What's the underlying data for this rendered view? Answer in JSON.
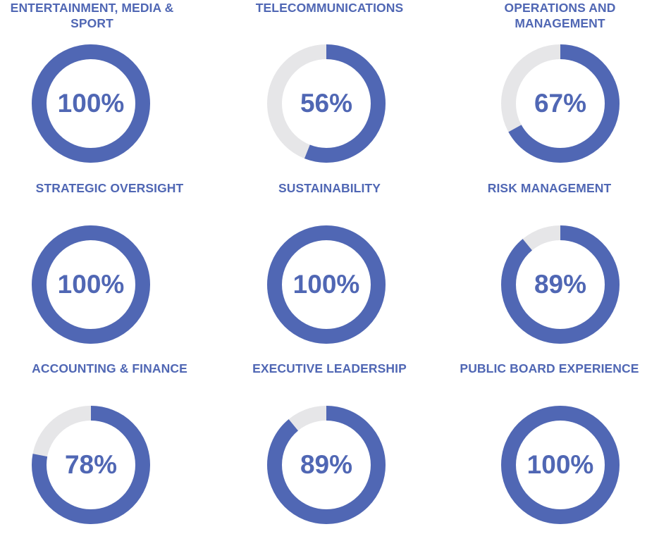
{
  "colors": {
    "fill": "#5067b4",
    "track": "#e6e6e8",
    "text": "#5067b4"
  },
  "chart_data": [
    {
      "type": "pie",
      "title": "ENTERTAINMENT, MEDIA & SPORT",
      "values": [
        100
      ],
      "value_label": "100%"
    },
    {
      "type": "pie",
      "title": "TELECOMMUNICATIONS",
      "values": [
        56
      ],
      "value_label": "56%"
    },
    {
      "type": "pie",
      "title": "OPERATIONS AND MANAGEMENT",
      "values": [
        67
      ],
      "value_label": "67%"
    },
    {
      "type": "pie",
      "title": "STRATEGIC OVERSIGHT",
      "values": [
        100
      ],
      "value_label": "100%"
    },
    {
      "type": "pie",
      "title": "SUSTAINABILITY",
      "values": [
        100
      ],
      "value_label": "100%"
    },
    {
      "type": "pie",
      "title": "RISK MANAGEMENT",
      "values": [
        89
      ],
      "value_label": "89%"
    },
    {
      "type": "pie",
      "title": "ACCOUNTING & FINANCE",
      "values": [
        78
      ],
      "value_label": "78%"
    },
    {
      "type": "pie",
      "title": "EXECUTIVE LEADERSHIP",
      "values": [
        89
      ],
      "value_label": "89%"
    },
    {
      "type": "pie",
      "title": "PUBLIC BOARD EXPERIENCE",
      "values": [
        100
      ],
      "value_label": "100%"
    }
  ]
}
